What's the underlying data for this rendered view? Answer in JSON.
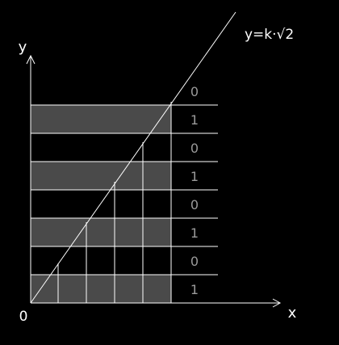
{
  "diagram": {
    "axes": {
      "x_label": "x",
      "y_label": "y",
      "origin_label": "0"
    },
    "line_label": "y=k·√2",
    "bits_top_to_bottom": [
      "0",
      "1",
      "0",
      "1",
      "0",
      "1",
      "0",
      "1"
    ],
    "colors": {
      "background": "#000000",
      "lines": "#ffffff",
      "shaded_band": "#4a4a4a",
      "bit_text": "#9a9a9a"
    }
  }
}
